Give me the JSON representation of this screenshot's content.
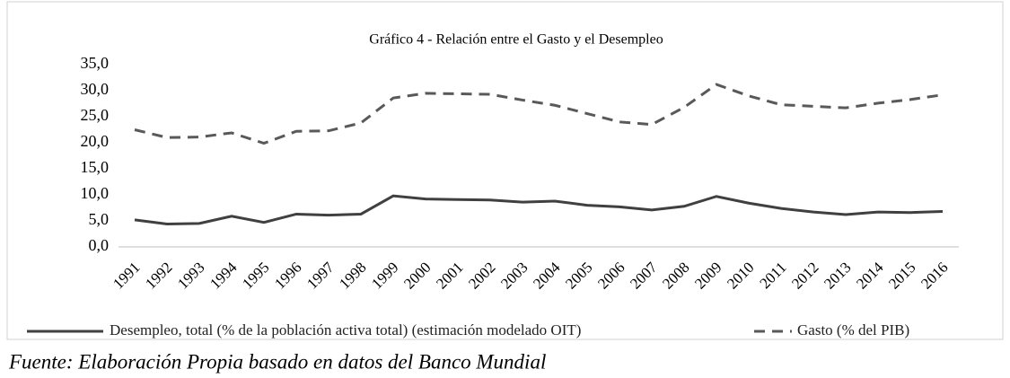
{
  "chart_data": {
    "type": "line",
    "title": "Gráfico 4 -  Relación entre el Gasto y el Desempleo",
    "categories": [
      "1991",
      "1992",
      "1993",
      "1994",
      "1995",
      "1996",
      "1997",
      "1998",
      "1999",
      "2000",
      "2001",
      "2002",
      "2003",
      "2004",
      "2005",
      "2006",
      "2007",
      "2008",
      "2009",
      "2010",
      "2011",
      "2012",
      "2013",
      "2014",
      "2015",
      "2016"
    ],
    "series": [
      {
        "name": "Desempleo, total (% de la población activa total) (estimación modelado OIT)",
        "color": "#404040",
        "dash": false,
        "values": [
          5.2,
          4.4,
          4.5,
          5.9,
          4.7,
          6.3,
          6.1,
          6.3,
          9.8,
          9.2,
          9.1,
          9.0,
          8.6,
          8.8,
          8.0,
          7.7,
          7.1,
          7.8,
          9.7,
          8.4,
          7.4,
          6.7,
          6.2,
          6.7,
          6.6,
          6.8
        ]
      },
      {
        "name": "Gasto (% del PIB)",
        "color": "#595959",
        "dash": true,
        "values": [
          22.5,
          21.0,
          21.1,
          21.9,
          19.9,
          22.2,
          22.3,
          23.8,
          28.6,
          29.5,
          29.4,
          29.3,
          28.2,
          27.2,
          25.6,
          24.0,
          23.5,
          26.8,
          31.2,
          29.0,
          27.3,
          27.0,
          26.7,
          27.6,
          28.3,
          29.2
        ]
      }
    ],
    "ylim": [
      0,
      35
    ],
    "yticks": [
      {
        "value": 0,
        "label": "0,0"
      },
      {
        "value": 5,
        "label": "5,0"
      },
      {
        "value": 10,
        "label": "10,0"
      },
      {
        "value": 15,
        "label": "15,0"
      },
      {
        "value": 20,
        "label": "20,0"
      },
      {
        "value": 25,
        "label": "25,0"
      },
      {
        "value": 30,
        "label": "30,0"
      },
      {
        "value": 35,
        "label": "35,0"
      }
    ],
    "legend": "bottom",
    "source": "Fuente: Elaboración Propia basado en datos del Banco Mundial"
  }
}
